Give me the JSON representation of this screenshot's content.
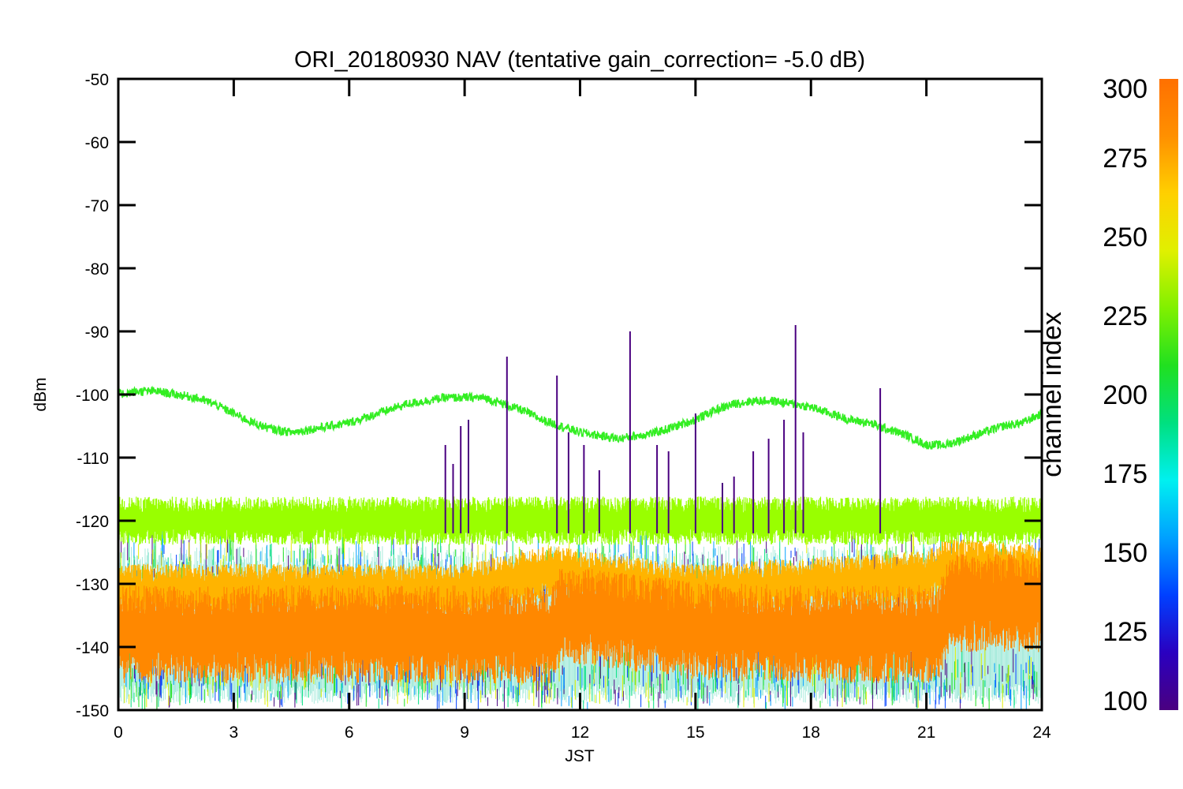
{
  "chart_data": {
    "type": "line",
    "title": "ORI_20180930 NAV (tentative gain_correction= -5.0 dB)",
    "xlabel": "JST",
    "ylabel": "dBm",
    "xlim": [
      0,
      24
    ],
    "ylim": [
      -150,
      -50
    ],
    "x_ticks": [
      "0",
      "3",
      "6",
      "9",
      "12",
      "15",
      "18",
      "21",
      "24"
    ],
    "y_ticks": [
      "-50",
      "-60",
      "-70",
      "-80",
      "-90",
      "-100",
      "-110",
      "-120",
      "-130",
      "-140",
      "-150"
    ],
    "grid": false,
    "colorbar": {
      "label": "channel index",
      "range": [
        100,
        300
      ],
      "ticks": [
        "100",
        "125",
        "150",
        "175",
        "200",
        "225",
        "250",
        "275",
        "300"
      ],
      "colors": [
        "#4a0080",
        "#2a00c0",
        "#0040ff",
        "#00a0ff",
        "#00f0f0",
        "#00e080",
        "#20e020",
        "#80f000",
        "#e0f000",
        "#ffd000",
        "#ff9000",
        "#ff7000"
      ]
    },
    "series": [
      {
        "color": "#33ee22",
        "x": [
          0,
          0.5,
          1,
          1.5,
          2,
          2.5,
          3,
          3.5,
          4,
          4.5,
          5,
          5.5,
          6,
          6.5,
          7,
          7.5,
          8,
          8.5,
          9,
          9.5,
          10,
          10.5,
          11,
          11.5,
          12,
          12.5,
          13,
          13.5,
          14,
          14.5,
          15,
          15.5,
          16,
          16.5,
          17,
          17.5,
          18,
          18.5,
          19,
          19.5,
          20,
          20.5,
          21,
          21.5,
          22,
          22.5,
          23,
          23.5,
          24
        ],
        "y": [
          -100,
          -99.5,
          -99.5,
          -100,
          -100.5,
          -101.5,
          -103,
          -104.5,
          -105.5,
          -106,
          -105.5,
          -105,
          -104.5,
          -103.5,
          -102.5,
          -101.5,
          -101,
          -100.5,
          -100.5,
          -100.5,
          -101.5,
          -102.5,
          -104,
          -105,
          -106,
          -106.5,
          -107,
          -106.5,
          -106,
          -105,
          -104,
          -102.5,
          -101.5,
          -101,
          -101,
          -101.5,
          -102,
          -103,
          -104,
          -104.5,
          -105.5,
          -106.5,
          -108,
          -108,
          -107,
          -106,
          -105,
          -104.5,
          -103
        ]
      },
      {
        "color": "#99ff00",
        "x": [
          0,
          3,
          6,
          9,
          12,
          15,
          18,
          21,
          24
        ],
        "y": [
          -120,
          -120,
          -120,
          -120,
          -120,
          -120,
          -120,
          -120,
          -120
        ]
      },
      {
        "color": "#ffb400",
        "x": [
          0,
          3,
          6,
          9,
          11.3,
          12,
          15,
          18,
          21,
          21.5,
          24
        ],
        "y": [
          -131,
          -131,
          -131,
          -131,
          -128,
          -129,
          -131,
          -130,
          -129,
          -127,
          -128
        ]
      },
      {
        "color": "#ff8800",
        "x": [
          0,
          3,
          6,
          9,
          11.3,
          11.5,
          12,
          15,
          18,
          21.3,
          21.6,
          24
        ],
        "y": [
          -138,
          -138,
          -138,
          -138,
          -138,
          -135,
          -135,
          -137.5,
          -138,
          -138,
          -133,
          -133
        ]
      },
      {
        "color": "#4a0080",
        "type": "spikes",
        "x": [
          8.5,
          8.7,
          8.9,
          9.1,
          10.1,
          11.4,
          11.7,
          12.1,
          12.5,
          13.3,
          14.0,
          14.3,
          15.0,
          15.7,
          16.0,
          16.5,
          16.9,
          17.3,
          17.6,
          17.8,
          19.8
        ],
        "y": [
          -108,
          -111,
          -105,
          -104,
          -94,
          -97,
          -106,
          -108,
          -112,
          -90,
          -108,
          -109,
          -103,
          -114,
          -113,
          -109,
          -107,
          -104,
          -89,
          -106,
          -99
        ]
      }
    ]
  }
}
